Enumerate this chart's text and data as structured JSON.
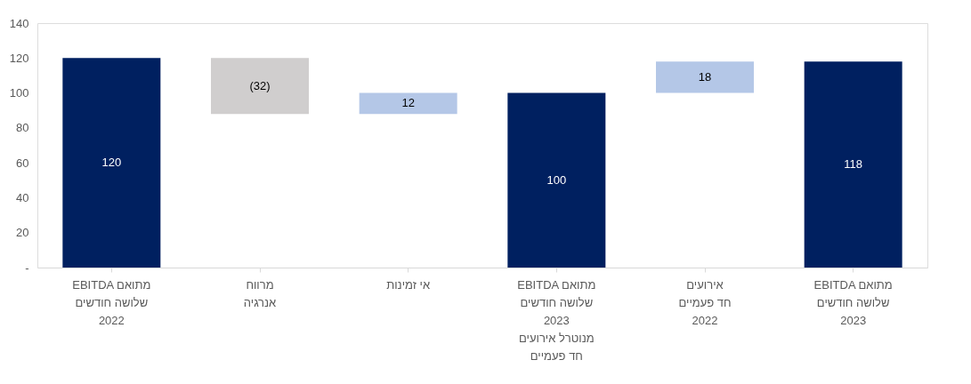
{
  "chart_data": {
    "type": "bar",
    "categories": [
      "EBITDA מתואם\nשלושה חודשים\n2022",
      "מרווח\nאנרגיה",
      "אי זמינות",
      "EBITDA מתואם\nשלושה חודשים\n2023\nמנוטרל אירועים\nחד פעמיים",
      "אירועים\nחד פעמיים\n2022",
      "EBITDA מתואם\nשלושה חודשים\n2023"
    ],
    "values": [
      120,
      -32,
      12,
      100,
      18,
      118
    ],
    "base": [
      0,
      120,
      88,
      0,
      100,
      0
    ],
    "colors": [
      "#002060",
      "#d0cece",
      "#b4c7e7",
      "#002060",
      "#b4c7e7",
      "#002060"
    ],
    "value_labels": [
      "120",
      "(32)",
      "12",
      "100",
      "18",
      "118"
    ],
    "ylim": [
      0,
      140
    ],
    "yticks": [
      {
        "value": 0,
        "label": "-"
      },
      20,
      40,
      60,
      80,
      100,
      120,
      140
    ],
    "grid": false
  }
}
